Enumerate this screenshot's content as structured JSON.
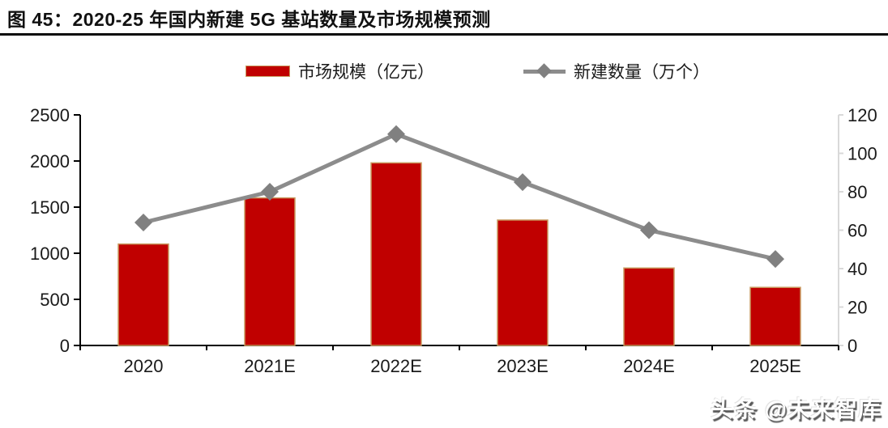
{
  "header": {
    "title": "图 45：2020-25 年国内新建 5G 基站数量及市场规模预测"
  },
  "watermark": {
    "text": "头条 @未来智库"
  },
  "colors": {
    "bar_fill": "#C00000",
    "bar_border": "#C89A60",
    "line": "#8C8C8C",
    "marker": "#808080",
    "axis": "#000000",
    "right_axis": "#D9D9D9",
    "text": "#1a1a1a"
  },
  "chart_data": {
    "type": "bar",
    "subtype": "bar+line combo, dual axis",
    "title": "图 45：2020-25 年国内新建 5G 基站数量及市场规模预测",
    "categories": [
      "2020",
      "2021E",
      "2022E",
      "2023E",
      "2024E",
      "2025E"
    ],
    "series": [
      {
        "name": "市场规模（亿元）",
        "type": "bar",
        "axis": "left",
        "values": [
          1100,
          1600,
          1980,
          1360,
          840,
          630
        ]
      },
      {
        "name": "新建数量（万个）",
        "type": "line",
        "axis": "right",
        "marker": "diamond",
        "values": [
          64,
          80,
          110,
          85,
          60,
          45
        ]
      }
    ],
    "left_axis": {
      "min": 0,
      "max": 2500,
      "ticks": [
        0,
        500,
        1000,
        1500,
        2000,
        2500
      ]
    },
    "right_axis": {
      "min": 0,
      "max": 120,
      "ticks": [
        0,
        20,
        40,
        60,
        80,
        100,
        120
      ]
    },
    "xlabel": "",
    "ylabel": "",
    "grid": false,
    "legend_position": "top"
  }
}
